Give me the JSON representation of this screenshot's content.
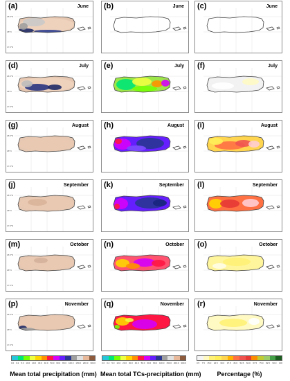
{
  "panels": [
    {
      "label": "(a)",
      "month": "June"
    },
    {
      "label": "(b)",
      "month": "June"
    },
    {
      "label": "(c)",
      "month": "June"
    },
    {
      "label": "(d)",
      "month": "July"
    },
    {
      "label": "(e)",
      "month": "July"
    },
    {
      "label": "(f)",
      "month": "July"
    },
    {
      "label": "(g)",
      "month": "August"
    },
    {
      "label": "(h)",
      "month": "August"
    },
    {
      "label": "(i)",
      "month": "August"
    },
    {
      "label": "(j)",
      "month": "September"
    },
    {
      "label": "(k)",
      "month": "September"
    },
    {
      "label": "(l)",
      "month": "September"
    },
    {
      "label": "(m)",
      "month": "October"
    },
    {
      "label": "(n)",
      "month": "October"
    },
    {
      "label": "(o)",
      "month": "October"
    },
    {
      "label": "(p)",
      "month": "November"
    },
    {
      "label": "(q)",
      "month": "November"
    },
    {
      "label": "(r)",
      "month": "November"
    }
  ],
  "lat_labels": [
    "18.5°N",
    "18°N",
    "17.5°N"
  ],
  "lon_labels": [
    "67°W",
    "66.5°W",
    "66°W",
    "65.5°W"
  ],
  "colorbars": [
    {
      "title": "Mean total precipitation (mm)",
      "ticks": [
        "0.0",
        "0.2",
        "5.0",
        "10.0",
        "20.0",
        "30.0",
        "40.0",
        "50.0",
        "60.0",
        "80.0",
        "100.0",
        "150.0",
        "200.0",
        "300.0"
      ],
      "unit": "mm",
      "colors": [
        "#26c6da",
        "#00e676",
        "#76ff03",
        "#eeff41",
        "#ffd600",
        "#ff9100",
        "#ff1744",
        "#d500f9",
        "#651fff",
        "#283593",
        "#9e9e9e",
        "#e0e0e0",
        "#e8b89a",
        "#8d5a3c"
      ]
    },
    {
      "title": "Mean total TCs-precipitation (mm)",
      "ticks": [
        "0.0",
        "0.2",
        "5.0",
        "10.0",
        "20.0",
        "30.0",
        "40.0",
        "50.0",
        "60.0",
        "80.0",
        "100.0",
        "150.0",
        "200.0",
        "300.0"
      ],
      "unit": "mm",
      "colors": [
        "#26c6da",
        "#00e676",
        "#76ff03",
        "#eeff41",
        "#ffd600",
        "#ff9100",
        "#ff1744",
        "#d500f9",
        "#651fff",
        "#283593",
        "#9e9e9e",
        "#e0e0e0",
        "#e8b89a",
        "#8d5a3c"
      ]
    },
    {
      "title": "Percentage (%)",
      "ticks": [
        "0.5",
        "7.5",
        "15.0",
        "22.5",
        "30.0",
        "37.5",
        "45.0",
        "52.5",
        "60.0",
        "67.5",
        "75.0",
        "82.5",
        "90.0",
        "100"
      ],
      "colors": [
        "#f5f5f5",
        "#fff9c4",
        "#fff176",
        "#ffee58",
        "#ffd54f",
        "#ffb300",
        "#ff7043",
        "#ef5350",
        "#e53935",
        "#fb8c00",
        "#c0ca33",
        "#9ccc65",
        "#43a047",
        "#1b5e20"
      ]
    }
  ]
}
